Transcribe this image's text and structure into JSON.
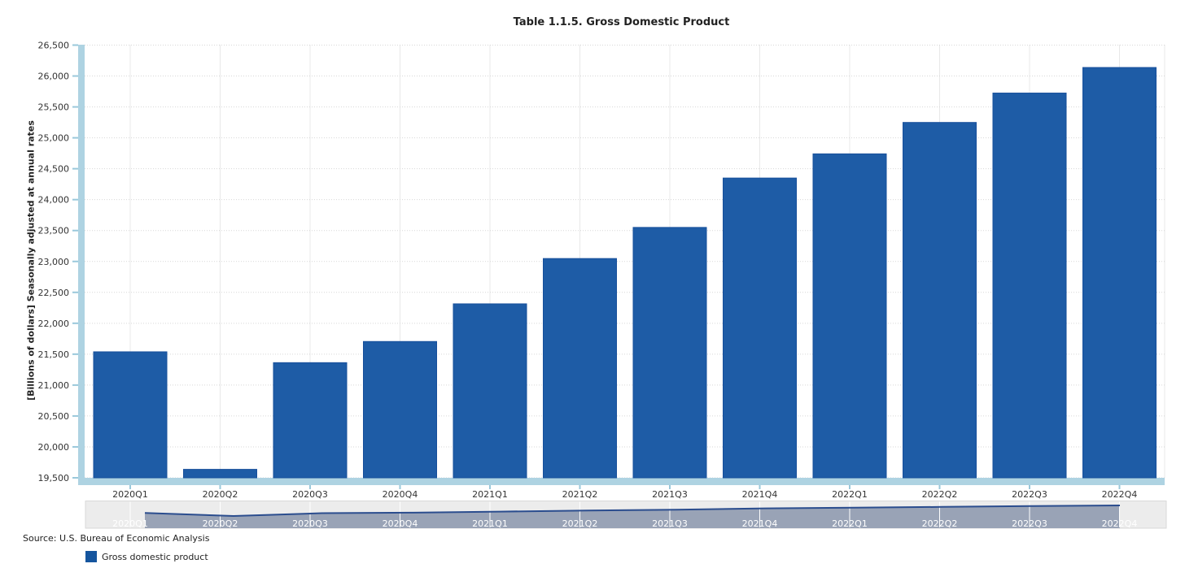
{
  "header": {
    "title": "Table 1.1.5. Gross Domestic Product"
  },
  "footer": {
    "source": "Source: U.S. Bureau of Economic Analysis",
    "legend_label": "Gross domestic product"
  },
  "chart_data": {
    "type": "bar",
    "title": "Table 1.1.5. Gross Domestic Product",
    "ylabel": "[Billions of dollars] Seasonally adjusted at annual rates",
    "xlabel": "",
    "categories": [
      "2020Q1",
      "2020Q2",
      "2020Q3",
      "2020Q4",
      "2021Q1",
      "2021Q2",
      "2021Q3",
      "2021Q4",
      "2022Q1",
      "2022Q2",
      "2022Q3",
      "2022Q4"
    ],
    "series": [
      {
        "name": "Gross domestic product",
        "values": [
          21538.0,
          19636.7,
          21362.4,
          21704.7,
          22313.9,
          23046.9,
          23550.4,
          24349.1,
          24740.5,
          25248.5,
          25723.9,
          26137.5
        ]
      }
    ],
    "ylim": [
      19500,
      26500
    ],
    "ytick_step": 500,
    "ytick_labels": [
      "19,500",
      "20,000",
      "20,500",
      "21,000",
      "21,500",
      "22,000",
      "22,500",
      "23,000",
      "23,500",
      "24,000",
      "24,500",
      "25,000",
      "25,500",
      "26,000",
      "26,500"
    ],
    "grid": true,
    "legend_position": "bottom-left",
    "navigator": true,
    "colors": {
      "bar_fill": "#1e5ca6",
      "bar_border": "#174f9b",
      "axis_band": "#aed3e2",
      "axis_tick": "#9ac8db",
      "grid_h": "#d7d7d7",
      "grid_v": "#e8e8e8",
      "label_text": "#333333",
      "nav_bg": "#ececec",
      "nav_border": "#d9d9d9",
      "nav_fill": "#959fb3",
      "nav_line": "#2b4d8e",
      "nav_label": "#ffffff",
      "legend_swatch": "#15559e"
    }
  }
}
